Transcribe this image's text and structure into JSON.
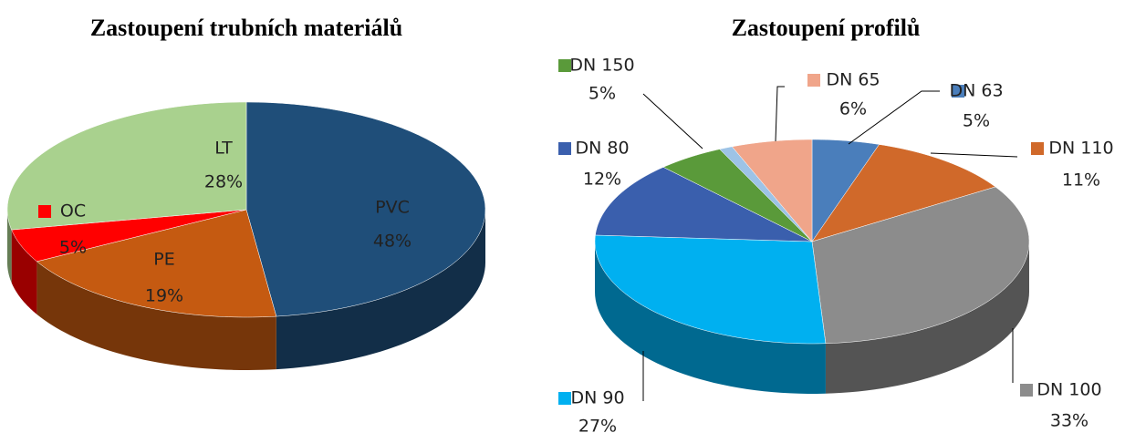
{
  "chart_data": [
    {
      "type": "pie",
      "title": "Zastoupení trubních materiálů",
      "categories": [
        "PVC",
        "PE",
        "OC",
        "LT"
      ],
      "values": [
        48,
        19,
        5,
        28
      ],
      "value_labels": [
        "48%",
        "19%",
        "5%",
        "28%"
      ],
      "colors": [
        "#1f4e79",
        "#c55a11",
        "#ff0000",
        "#a9d18e"
      ]
    },
    {
      "type": "pie",
      "title": "Zastoupení profilů",
      "categories": [
        "DN 63",
        "DN 110",
        "DN 100",
        "DN 90",
        "DN 80",
        "DN 150",
        null,
        "DN 65"
      ],
      "values": [
        5,
        11,
        33,
        27,
        12,
        5,
        1,
        6
      ],
      "value_labels": [
        "5%",
        "11%",
        "33%",
        "27%",
        "12%",
        "5%",
        null,
        "6%"
      ],
      "colors": [
        "#4a7ebb",
        "#d0692a",
        "#8c8c8c",
        "#00b0f0",
        "#3a5fad",
        "#5a9a3a",
        "#9dc3e6",
        "#f0a58a"
      ]
    }
  ]
}
